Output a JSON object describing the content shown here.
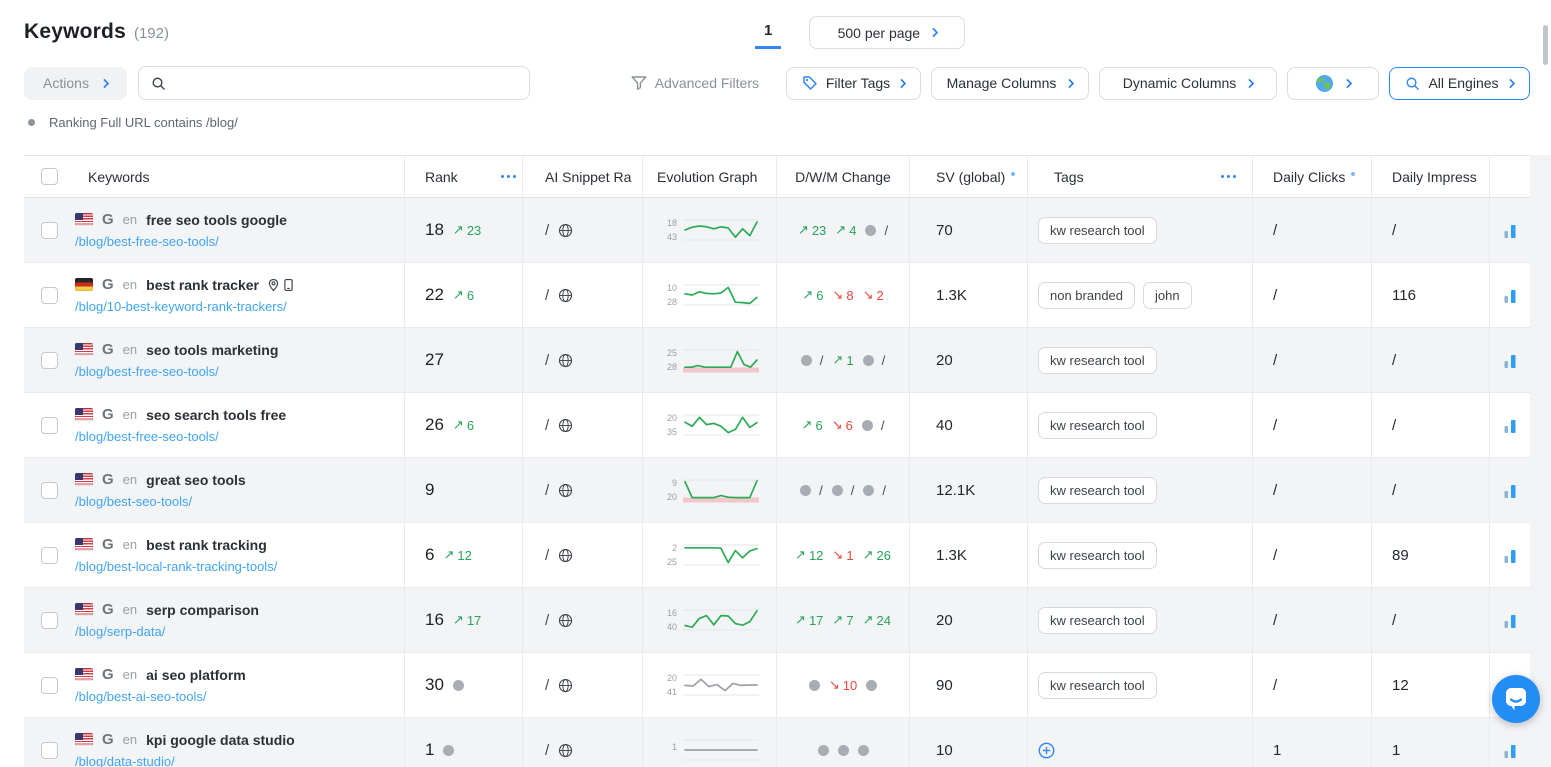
{
  "page": {
    "title": "Keywords",
    "count": "(192)",
    "filter_note": "Ranking Full URL contains /blog/"
  },
  "pagination": {
    "current_page": "1",
    "per_page_label": "500 per page"
  },
  "toolbar": {
    "actions_label": "Actions",
    "advanced_filters_label": "Advanced Filters",
    "filter_tags_label": "Filter Tags",
    "manage_columns_label": "Manage Columns",
    "dynamic_columns_label": "Dynamic Columns",
    "all_engines_label": "All Engines"
  },
  "colors": {
    "accent_blue": "#2e86f7",
    "link_blue": "#41a4f5",
    "green": "#27a35c",
    "red": "#e8463f",
    "chart_green": "#2bab55",
    "chart_gray": "#9aa0a6",
    "loss_band_pink": "#f3c2c5",
    "chat_blue": "#238cf5"
  },
  "table": {
    "columns": [
      "Keywords",
      "Rank",
      "AI Snippet Ra",
      "Evolution Graph",
      "D/W/M Change",
      "SV (global)",
      "Tags",
      "Daily Clicks",
      "Daily Impress"
    ],
    "rows": [
      {
        "flag": "us",
        "engine": "G",
        "lang": "en",
        "keyword": "free seo tools google",
        "extra_icons": [],
        "url": "/blog/best-free-seo-tools/",
        "rank": "18",
        "rank_change": {
          "type": "up",
          "value": "23"
        },
        "ai_snippet": "/",
        "spark": {
          "top_label": "18",
          "bottom_label": "43",
          "color": "green",
          "band": false,
          "points": [
            0.5,
            0.36,
            0.3,
            0.34,
            0.44,
            0.34,
            0.4,
            0.86,
            0.44,
            0.78,
            0.1
          ]
        },
        "dwm": [
          {
            "type": "up",
            "value": "23"
          },
          {
            "type": "up",
            "value": "4"
          },
          {
            "type": "dotslash"
          }
        ],
        "sv": "70",
        "tags": [
          "kw research tool"
        ],
        "tags_add": false,
        "daily_clicks": "/",
        "daily_impressions": "/"
      },
      {
        "flag": "de",
        "engine": "G",
        "lang": "en",
        "keyword": "best rank tracker",
        "extra_icons": [
          "pin",
          "mobile"
        ],
        "url": "/blog/10-best-keyword-rank-trackers/",
        "rank": "22",
        "rank_change": {
          "type": "up",
          "value": "6"
        },
        "ai_snippet": "/",
        "spark": {
          "top_label": "10",
          "bottom_label": "28",
          "color": "green",
          "band": false,
          "points": [
            0.44,
            0.5,
            0.34,
            0.42,
            0.44,
            0.4,
            0.12,
            0.86,
            0.88,
            0.92,
            0.62
          ]
        },
        "dwm": [
          {
            "type": "up",
            "value": "6"
          },
          {
            "type": "down",
            "value": "8"
          },
          {
            "type": "down",
            "value": "2"
          }
        ],
        "sv": "1.3K",
        "tags": [
          "non branded",
          "john"
        ],
        "tags_add": false,
        "daily_clicks": "/",
        "daily_impressions": "116"
      },
      {
        "flag": "us",
        "engine": "G",
        "lang": "en",
        "keyword": "seo tools marketing",
        "extra_icons": [],
        "url": "/blog/best-free-seo-tools/",
        "rank": "27",
        "rank_change": null,
        "ai_snippet": "/",
        "spark": {
          "top_label": "25",
          "bottom_label": "28",
          "color": "green",
          "band": true,
          "points": [
            0.86,
            0.86,
            0.78,
            0.86,
            0.86,
            0.86,
            0.86,
            0.86,
            0.08,
            0.72,
            0.86,
            0.5
          ]
        },
        "dwm": [
          {
            "type": "dotslash"
          },
          {
            "type": "up",
            "value": "1"
          },
          {
            "type": "dotslash"
          }
        ],
        "sv": "20",
        "tags": [
          "kw research tool"
        ],
        "tags_add": false,
        "daily_clicks": "/",
        "daily_impressions": "/"
      },
      {
        "flag": "us",
        "engine": "G",
        "lang": "en",
        "keyword": "seo search tools free",
        "extra_icons": [],
        "url": "/blog/best-free-seo-tools/",
        "rank": "26",
        "rank_change": {
          "type": "up",
          "value": "6"
        },
        "ai_snippet": "/",
        "spark": {
          "top_label": "20",
          "bottom_label": "35",
          "color": "green",
          "band": false,
          "points": [
            0.36,
            0.56,
            0.12,
            0.48,
            0.42,
            0.56,
            0.88,
            0.72,
            0.12,
            0.62,
            0.38
          ]
        },
        "dwm": [
          {
            "type": "up",
            "value": "6"
          },
          {
            "type": "down",
            "value": "6"
          },
          {
            "type": "dotslash"
          }
        ],
        "sv": "40",
        "tags": [
          "kw research tool"
        ],
        "tags_add": false,
        "daily_clicks": "/",
        "daily_impressions": "/"
      },
      {
        "flag": "us",
        "engine": "G",
        "lang": "en",
        "keyword": "great seo tools",
        "extra_icons": [],
        "url": "/blog/best-seo-tools/",
        "rank": "9",
        "rank_change": null,
        "ai_snippet": "/",
        "spark": {
          "top_label": "9",
          "bottom_label": "20",
          "color": "green",
          "band": true,
          "points": [
            0.08,
            0.88,
            0.88,
            0.88,
            0.88,
            0.78,
            0.86,
            0.88,
            0.88,
            0.88,
            0.04
          ]
        },
        "dwm": [
          {
            "type": "dotslash"
          },
          {
            "type": "dotslash"
          },
          {
            "type": "dotslash"
          }
        ],
        "sv": "12.1K",
        "tags": [
          "kw research tool"
        ],
        "tags_add": false,
        "daily_clicks": "/",
        "daily_impressions": "/"
      },
      {
        "flag": "us",
        "engine": "G",
        "lang": "en",
        "keyword": "best rank tracking",
        "extra_icons": [],
        "url": "/blog/best-local-rank-tracking-tools/",
        "rank": "6",
        "rank_change": {
          "type": "up",
          "value": "12"
        },
        "ai_snippet": "/",
        "spark": {
          "top_label": "2",
          "bottom_label": "25",
          "color": "green",
          "band": false,
          "points": [
            0.14,
            0.14,
            0.14,
            0.14,
            0.14,
            0.16,
            0.88,
            0.28,
            0.64,
            0.3,
            0.18
          ]
        },
        "dwm": [
          {
            "type": "up",
            "value": "12"
          },
          {
            "type": "down",
            "value": "1"
          },
          {
            "type": "up",
            "value": "26"
          }
        ],
        "sv": "1.3K",
        "tags": [
          "kw research tool"
        ],
        "tags_add": false,
        "daily_clicks": "/",
        "daily_impressions": "89"
      },
      {
        "flag": "us",
        "engine": "G",
        "lang": "en",
        "keyword": "serp comparison",
        "extra_icons": [],
        "url": "/blog/serp-data/",
        "rank": "16",
        "rank_change": {
          "type": "up",
          "value": "17"
        },
        "ai_snippet": "/",
        "spark": {
          "top_label": "16",
          "bottom_label": "40",
          "color": "green",
          "band": false,
          "points": [
            0.78,
            0.86,
            0.42,
            0.28,
            0.74,
            0.28,
            0.3,
            0.68,
            0.76,
            0.58,
            0.04
          ]
        },
        "dwm": [
          {
            "type": "up",
            "value": "17"
          },
          {
            "type": "up",
            "value": "7"
          },
          {
            "type": "up",
            "value": "24"
          }
        ],
        "sv": "20",
        "tags": [
          "kw research tool"
        ],
        "tags_add": false,
        "daily_clicks": "/",
        "daily_impressions": "/"
      },
      {
        "flag": "us",
        "engine": "G",
        "lang": "en",
        "keyword": "ai seo platform",
        "extra_icons": [],
        "url": "/blog/best-ai-seo-tools/",
        "rank": "30",
        "rank_change": {
          "type": "dot"
        },
        "ai_snippet": "/",
        "spark": {
          "top_label": "20",
          "bottom_label": "41",
          "color": "gray",
          "band": false,
          "points": [
            0.52,
            0.55,
            0.22,
            0.58,
            0.48,
            0.78,
            0.42,
            0.52,
            0.5,
            0.5
          ]
        },
        "dwm": [
          {
            "type": "dot"
          },
          {
            "type": "down",
            "value": "10"
          },
          {
            "type": "dot"
          }
        ],
        "sv": "90",
        "tags": [
          "kw research tool"
        ],
        "tags_add": false,
        "daily_clicks": "/",
        "daily_impressions": "12"
      },
      {
        "flag": "us",
        "engine": "G",
        "lang": "en",
        "keyword": "kpi google data studio",
        "extra_icons": [],
        "url": "/blog/data-studio/",
        "rank": "1",
        "rank_change": {
          "type": "dot"
        },
        "ai_snippet": "/",
        "spark": {
          "top_label": "1",
          "bottom_label": "",
          "color": "gray",
          "band": false,
          "points": [
            0.5,
            0.5,
            0.5,
            0.5,
            0.5,
            0.5,
            0.5,
            0.5
          ]
        },
        "dwm": [
          {
            "type": "dot"
          },
          {
            "type": "dot"
          },
          {
            "type": "dot"
          }
        ],
        "sv": "10",
        "tags": [],
        "tags_add": true,
        "daily_clicks": "1",
        "daily_impressions": "1"
      }
    ]
  }
}
